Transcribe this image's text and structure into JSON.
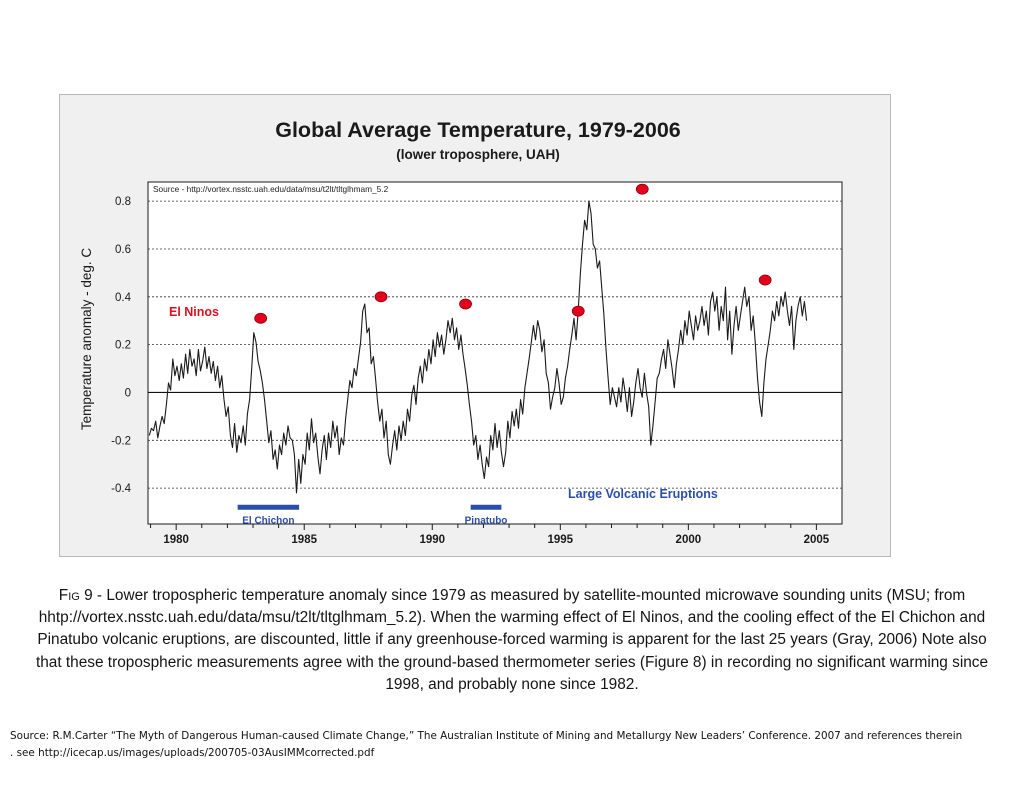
{
  "figure": {
    "title": "Global Average Temperature, 1979-2006",
    "subtitle": "(lower troposphere, UAH)",
    "source_text": "Source - http://vortex.nsstc.uah.edu/data/msu/t2lt/tltglhmam_5.2"
  },
  "chart_data": {
    "type": "line",
    "title": "Global Average Temperature, 1979-2006",
    "subtitle": "(lower troposphere, UAH)",
    "xlabel": "",
    "ylabel": "Temperature anomaly - deg. C",
    "xlim": [
      1978.9,
      2006.0
    ],
    "ylim": [
      -0.55,
      0.88
    ],
    "x_ticks": [
      1980,
      1985,
      1990,
      1995,
      2000,
      2005
    ],
    "x_tick_labels": [
      "1980",
      "1985",
      "1990",
      "1995",
      "2000",
      "2005"
    ],
    "y_ticks": [
      -0.4,
      -0.2,
      0,
      0.2,
      0.4,
      0.6,
      0.8
    ],
    "y_tick_labels": [
      "-0.4",
      "-0.2",
      "0",
      "0.2",
      "0.4",
      "0.6",
      "0.8"
    ],
    "grid": "dashed horizontal at labeled y ticks",
    "colors": {
      "line": "#1a1a1a",
      "el_nino_marker": "#e4001b",
      "el_nino_label": "#d8121f",
      "eruption": "#2b4fa8"
    },
    "series": [
      {
        "name": "",
        "x_start": 1978.95,
        "x_step": 0.083333,
        "values": [
          -0.18,
          -0.15,
          -0.16,
          -0.12,
          -0.19,
          -0.14,
          -0.1,
          -0.13,
          -0.05,
          0.04,
          0.01,
          0.14,
          0.07,
          0.11,
          0.05,
          0.12,
          0.06,
          0.16,
          0.08,
          0.18,
          0.11,
          0.14,
          0.07,
          0.18,
          0.09,
          0.13,
          0.19,
          0.1,
          0.15,
          0.08,
          0.13,
          0.05,
          0.11,
          0.02,
          0.07,
          -0.03,
          -0.1,
          -0.06,
          -0.18,
          -0.23,
          -0.13,
          -0.25,
          -0.18,
          -0.21,
          -0.14,
          -0.22,
          -0.09,
          -0.03,
          0.1,
          0.25,
          0.21,
          0.13,
          0.09,
          0.04,
          -0.03,
          -0.12,
          -0.21,
          -0.16,
          -0.28,
          -0.24,
          -0.32,
          -0.22,
          -0.26,
          -0.17,
          -0.22,
          -0.14,
          -0.19,
          -0.2,
          -0.26,
          -0.42,
          -0.28,
          -0.38,
          -0.26,
          -0.3,
          -0.17,
          -0.24,
          -0.11,
          -0.21,
          -0.17,
          -0.27,
          -0.34,
          -0.24,
          -0.18,
          -0.28,
          -0.17,
          -0.23,
          -0.12,
          -0.19,
          -0.14,
          -0.26,
          -0.19,
          -0.22,
          -0.11,
          -0.03,
          0.05,
          0.02,
          0.1,
          0.07,
          0.14,
          0.21,
          0.34,
          0.37,
          0.25,
          0.27,
          0.12,
          0.15,
          0.06,
          -0.04,
          -0.12,
          -0.07,
          -0.19,
          -0.12,
          -0.26,
          -0.3,
          -0.22,
          -0.16,
          -0.24,
          -0.14,
          -0.2,
          -0.12,
          -0.18,
          -0.07,
          -0.12,
          -0.01,
          0.03,
          -0.05,
          0.06,
          0.11,
          0.04,
          0.14,
          0.09,
          0.18,
          0.12,
          0.22,
          0.15,
          0.25,
          0.19,
          0.24,
          0.16,
          0.22,
          0.3,
          0.25,
          0.31,
          0.22,
          0.27,
          0.18,
          0.24,
          0.16,
          0.1,
          0.03,
          -0.05,
          -0.12,
          -0.22,
          -0.18,
          -0.28,
          -0.22,
          -0.3,
          -0.36,
          -0.27,
          -0.31,
          -0.18,
          -0.24,
          -0.13,
          -0.23,
          -0.16,
          -0.25,
          -0.31,
          -0.25,
          -0.12,
          -0.19,
          -0.08,
          -0.14,
          -0.07,
          -0.15,
          -0.03,
          -0.09,
          0.02,
          0.08,
          0.14,
          0.21,
          0.28,
          0.22,
          0.3,
          0.26,
          0.17,
          0.22,
          0.08,
          0.04,
          -0.07,
          -0.02,
          0.02,
          0.1,
          0.04,
          -0.05,
          -0.02,
          0.06,
          0.11,
          0.18,
          0.24,
          0.31,
          0.22,
          0.34,
          0.5,
          0.62,
          0.72,
          0.68,
          0.8,
          0.75,
          0.62,
          0.6,
          0.52,
          0.55,
          0.44,
          0.33,
          0.18,
          0.06,
          -0.05,
          0.02,
          -0.02,
          -0.06,
          0.02,
          -0.04,
          0.06,
          0.0,
          -0.08,
          0.02,
          -0.1,
          -0.04,
          0.04,
          0.1,
          0.02,
          -0.02,
          0.08,
          0.0,
          -0.06,
          -0.22,
          -0.14,
          -0.04,
          0.06,
          0.08,
          0.14,
          0.18,
          0.1,
          0.22,
          0.16,
          0.1,
          0.02,
          0.12,
          0.18,
          0.26,
          0.2,
          0.3,
          0.24,
          0.34,
          0.28,
          0.22,
          0.32,
          0.26,
          0.3,
          0.36,
          0.28,
          0.34,
          0.24,
          0.38,
          0.42,
          0.34,
          0.4,
          0.26,
          0.36,
          0.3,
          0.44,
          0.22,
          0.34,
          0.16,
          0.28,
          0.36,
          0.26,
          0.32,
          0.38,
          0.44,
          0.36,
          0.4,
          0.26,
          0.32,
          0.2,
          0.06,
          -0.04,
          -0.1,
          0.04,
          0.14,
          0.2,
          0.26,
          0.34,
          0.3,
          0.38,
          0.32,
          0.4,
          0.36,
          0.42,
          0.34,
          0.28,
          0.36,
          0.18,
          0.3,
          0.36,
          0.4,
          0.32,
          0.38,
          0.3
        ]
      }
    ],
    "annotations": {
      "el_ninos_label": "El Ninos",
      "el_ninos": [
        {
          "x": 1983.3,
          "y": 0.31
        },
        {
          "x": 1988.0,
          "y": 0.4
        },
        {
          "x": 1991.3,
          "y": 0.37
        },
        {
          "x": 1995.7,
          "y": 0.34
        },
        {
          "x": 1998.2,
          "y": 0.85
        },
        {
          "x": 2003.0,
          "y": 0.47
        }
      ],
      "eruptions_label": "Large Volcanic Eruptions",
      "eruptions": [
        {
          "name": "El Chichon",
          "x_start": 1982.4,
          "x_end": 1984.8,
          "y": -0.48
        },
        {
          "name": "Pinatubo",
          "x_start": 1991.5,
          "x_end": 1992.7,
          "y": -0.48
        }
      ]
    }
  },
  "caption": {
    "fig_label": "Fig 9",
    "lines": [
      " - Lower tropospheric temperature anomaly since 1979 as measured by satellite-mounted microwave sounding units (MSU; from",
      "hhtp://vortex.nsstc.uah.edu/data/msu/t2lt/tltglhmam_5.2). When the warming effect of El Ninos, and the cooling effect of the El Chichon and",
      "Pinatubo volcanic eruptions, are discounted, little if any  greenhouse-forced warming is apparent for the last 25 years (Gray, 2006) Note also",
      "that these tropospheric measurements agree with the ground-based thermometer series (Figure 8) in recording no significant warming since",
      "1998, and probably none since 1982."
    ]
  },
  "source_note": {
    "line1": "Source: R.M.Carter “The Myth of Dangerous Human-caused Climate Change,” The Australian Institute of Mining and Metallurgy New Leaders’ Conference. 2007 and references therein",
    "line2": ". see http://icecap.us/images/uploads/200705-03AusIMMcorrected.pdf"
  }
}
